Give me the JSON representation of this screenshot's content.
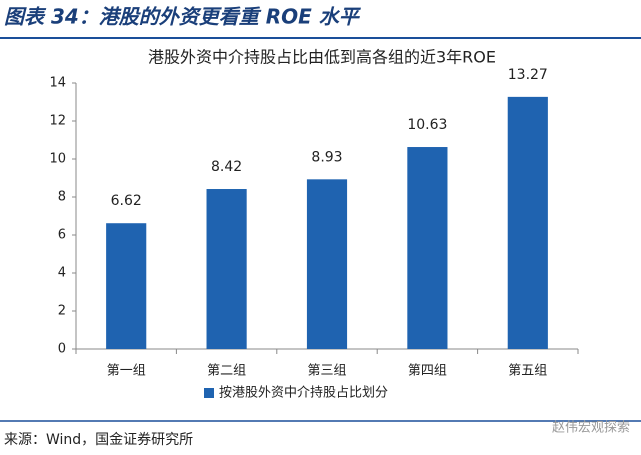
{
  "figure_title": "图表 34：港股的外资更看重 ROE 水平",
  "chart_data": {
    "type": "bar",
    "title": "港股外资中介持股占比由低到高各组的近3年ROE",
    "categories": [
      "第一组",
      "第二组",
      "第三组",
      "第四组",
      "第五组"
    ],
    "series": [
      {
        "name": "按港股外资中介持股占比划分",
        "color": "#1f63b0",
        "values": [
          6.62,
          8.42,
          8.93,
          10.63,
          13.27
        ]
      }
    ],
    "ylim": [
      0,
      14
    ],
    "yticks": [
      0,
      2,
      4,
      6,
      8,
      10,
      12,
      14
    ],
    "grid": false,
    "legend": "bottom"
  },
  "source": "来源：Wind，国金证券研究所",
  "watermark": "赵伟宏观探索"
}
